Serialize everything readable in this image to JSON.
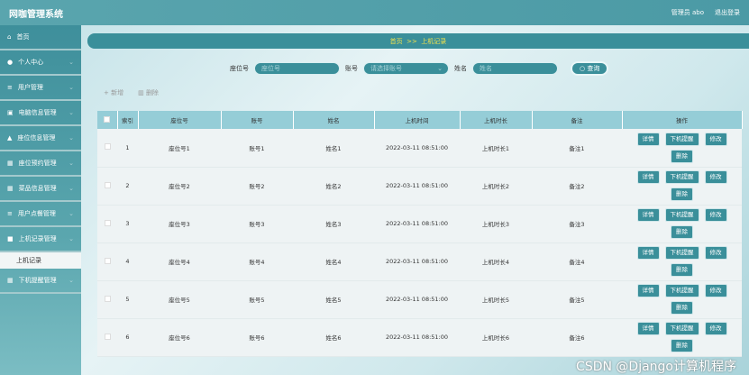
{
  "header": {
    "title": "网咖管理系统",
    "user": "管理员 abo",
    "logout": "退出登录"
  },
  "sidebar": {
    "items": [
      {
        "icon": "home-icon",
        "glyph": "⌂",
        "label": "首页"
      },
      {
        "icon": "user-icon",
        "glyph": "●",
        "label": "个人中心"
      },
      {
        "icon": "list-icon",
        "glyph": "≡",
        "label": "用户管理"
      },
      {
        "icon": "computer-icon",
        "glyph": "▣",
        "label": "电脑信息管理"
      },
      {
        "icon": "seat-icon",
        "glyph": "▲",
        "label": "座位信息管理"
      },
      {
        "icon": "grid-icon",
        "glyph": "▦",
        "label": "座位预约管理"
      },
      {
        "icon": "grid-icon",
        "glyph": "▦",
        "label": "菜品信息管理"
      },
      {
        "icon": "list-icon",
        "glyph": "≡",
        "label": "用户点餐管理"
      },
      {
        "icon": "monitor-icon",
        "glyph": "■",
        "label": "上机记录管理"
      },
      {
        "icon": "grid-icon",
        "glyph": "▦",
        "label": "下机提醒管理"
      }
    ],
    "sub_item": "上机记录"
  },
  "breadcrumb": {
    "home": "首页",
    "sep": ">>",
    "current": "上机记录"
  },
  "search": {
    "seat_label": "座位号",
    "seat_placeholder": "座位号",
    "account_label": "账号",
    "account_placeholder": "请选择账号",
    "name_label": "姓名",
    "name_placeholder": "姓名",
    "button": "查询"
  },
  "toolbar": {
    "add": "+ 新增",
    "delete": "删除"
  },
  "table": {
    "headers": [
      "索引",
      "座位号",
      "账号",
      "姓名",
      "上机时间",
      "上机时长",
      "备注",
      "操作"
    ],
    "rows": [
      [
        "1",
        "座位号1",
        "账号1",
        "姓名1",
        "2022-03-11 08:51:00",
        "上机时长1",
        "备注1"
      ],
      [
        "2",
        "座位号2",
        "账号2",
        "姓名2",
        "2022-03-11 08:51:00",
        "上机时长2",
        "备注2"
      ],
      [
        "3",
        "座位号3",
        "账号3",
        "姓名3",
        "2022-03-11 08:51:00",
        "上机时长3",
        "备注3"
      ],
      [
        "4",
        "座位号4",
        "账号4",
        "姓名4",
        "2022-03-11 08:51:00",
        "上机时长4",
        "备注4"
      ],
      [
        "5",
        "座位号5",
        "账号5",
        "姓名5",
        "2022-03-11 08:51:00",
        "上机时长5",
        "备注5"
      ],
      [
        "6",
        "座位号6",
        "账号6",
        "姓名6",
        "2022-03-11 08:51:00",
        "上机时长6",
        "备注6"
      ]
    ],
    "actions": [
      "详情",
      "下机提醒",
      "修改",
      "删除"
    ]
  },
  "watermark": "CSDN @Django计算机程序"
}
